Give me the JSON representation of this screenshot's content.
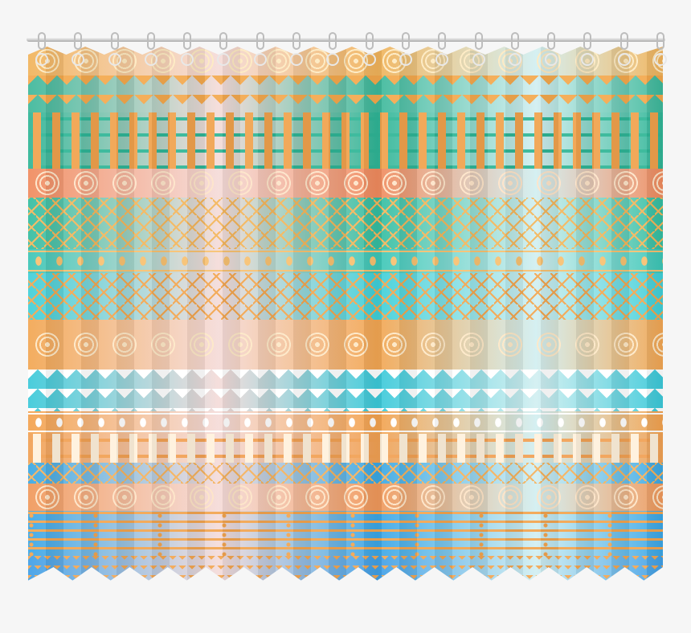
{
  "image": {
    "subject": "curtain",
    "pattern": "tribal stripes"
  },
  "colors": {
    "background": "#f6f6f6",
    "orange": "#f2a94e",
    "teal": "#37b89b",
    "coral": "#ef6f62",
    "cyan": "#3fd2dc",
    "blue": "#3a9fe4",
    "cream": "#fbe7b8"
  },
  "bands": [
    {
      "kind": "circles",
      "base": "#f1b35a",
      "motif": "#fde9c0",
      "h": 36
    },
    {
      "kind": "triangles",
      "base": "#3cb89a",
      "motif": "#f3a84d",
      "h": 46
    },
    {
      "kind": "squares",
      "base": "#2fb596",
      "motif": "#f0a24c",
      "h": 70
    },
    {
      "kind": "circles",
      "base": "#f08a5d",
      "motif": "#fde3c8",
      "h": 36
    },
    {
      "kind": "chevrons",
      "base": "#33bda0",
      "motif": "#f3b55a",
      "h": 64
    },
    {
      "kind": "dots",
      "base": "#3bc6b6",
      "motif": "#f7c070",
      "h": 30
    },
    {
      "kind": "chevrons",
      "base": "#3fcfd8",
      "motif": "#f2a54e",
      "h": 58
    },
    {
      "kind": "circles",
      "base": "#f2a652",
      "motif": "#fde7c6",
      "h": 62
    },
    {
      "kind": "triangles",
      "base": "#3bc9d9",
      "motif": "#ffffff",
      "h": 52
    },
    {
      "kind": "dots",
      "base": "#f3a24e",
      "motif": "#ffffff",
      "h": 28
    },
    {
      "kind": "squares",
      "base": "#f1a053",
      "motif": "#fff1dc",
      "h": 36
    },
    {
      "kind": "chevrons",
      "base": "#3aa7e3",
      "motif": "#f4b15c",
      "h": 26
    },
    {
      "kind": "circles",
      "base": "#f0985a",
      "motif": "#fde3c6",
      "h": 34
    },
    {
      "kind": "dashes",
      "base": "#3aa6e6",
      "motif": "#f2a44e",
      "h": 56
    },
    {
      "kind": "zigzag",
      "base": "#3f9fe6",
      "motif": "#f2a550",
      "h": 34
    }
  ],
  "grommet_count": 18
}
